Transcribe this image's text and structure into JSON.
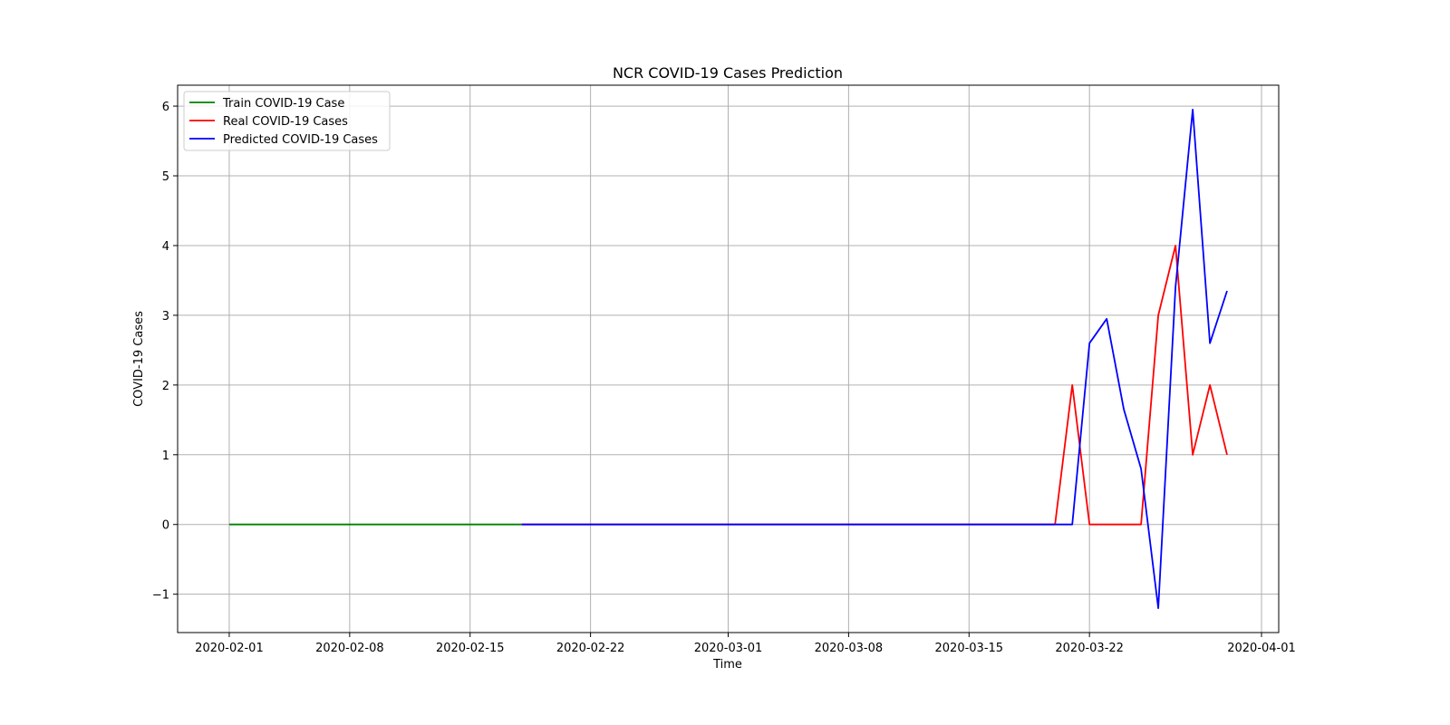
{
  "chart_data": {
    "type": "line",
    "title": "NCR COVID-19 Cases Prediction",
    "xlabel": "Time",
    "ylabel": "COVID-19 Cases",
    "xlim": [
      "2020-01-29",
      "2020-04-02"
    ],
    "ylim": [
      -1.55,
      6.3
    ],
    "x_ticks": [
      "2020-02-01",
      "2020-02-08",
      "2020-02-15",
      "2020-02-22",
      "2020-03-01",
      "2020-03-08",
      "2020-03-15",
      "2020-03-22",
      "2020-04-01"
    ],
    "y_ticks": [
      -1,
      0,
      1,
      2,
      3,
      4,
      5,
      6
    ],
    "grid": true,
    "legend_position": "upper-left",
    "series": [
      {
        "name": "Train COVID-19 Case",
        "color": "#008000",
        "x": [
          "2020-02-01",
          "2020-02-18"
        ],
        "y": [
          0,
          0
        ]
      },
      {
        "name": "Real COVID-19 Cases",
        "color": "#ff0000",
        "x": [
          "2020-02-18",
          "2020-03-20",
          "2020-03-21",
          "2020-03-22",
          "2020-03-23",
          "2020-03-24",
          "2020-03-25",
          "2020-03-26",
          "2020-03-27",
          "2020-03-28",
          "2020-03-29",
          "2020-03-30"
        ],
        "y": [
          0,
          0,
          2,
          0,
          0,
          0,
          0,
          3,
          4,
          1,
          2,
          1
        ]
      },
      {
        "name": "Predicted COVID-19 Cases",
        "color": "#0000ff",
        "x": [
          "2020-02-18",
          "2020-03-21",
          "2020-03-22",
          "2020-03-23",
          "2020-03-24",
          "2020-03-25",
          "2020-03-26",
          "2020-03-27",
          "2020-03-28",
          "2020-03-29",
          "2020-03-30"
        ],
        "y": [
          0,
          0,
          2.6,
          2.95,
          1.65,
          0.8,
          -1.2,
          3.4,
          5.95,
          2.6,
          3.35
        ]
      }
    ]
  }
}
